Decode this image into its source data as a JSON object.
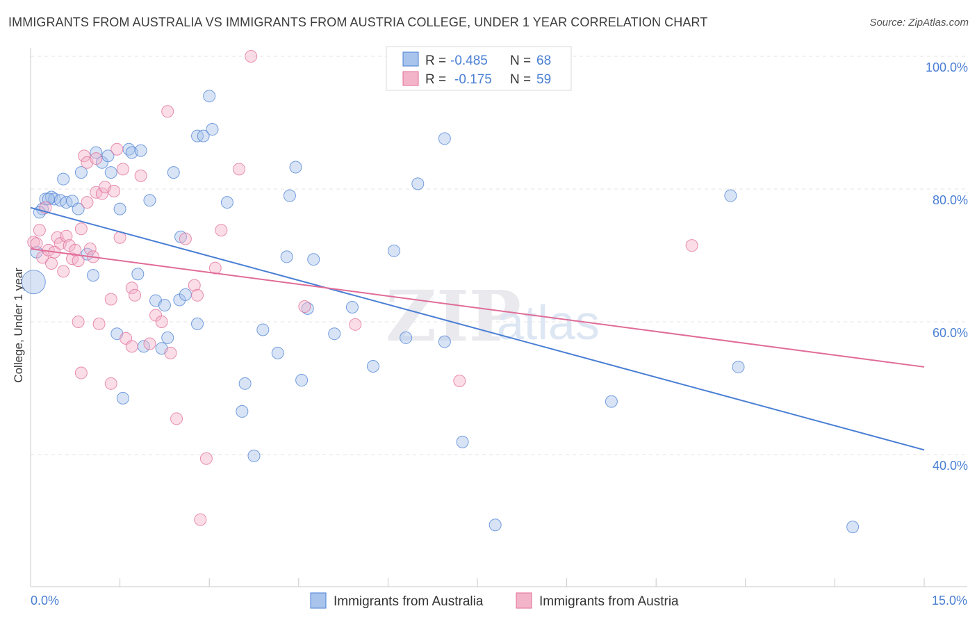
{
  "title": "IMMIGRANTS FROM AUSTRALIA VS IMMIGRANTS FROM AUSTRIA COLLEGE, UNDER 1 YEAR CORRELATION CHART",
  "source": "Source: ZipAtlas.com",
  "colors": {
    "blue": "#4a7fd4",
    "blue_fill": "#a9c4ec",
    "pink": "#e06c97",
    "pink_fill": "#f3b4c9"
  },
  "legend": {
    "r_label": "R =",
    "n_label": "N =",
    "rows": [
      {
        "r": "-0.485",
        "n": "68"
      },
      {
        "r": "-0.175",
        "n": "59"
      }
    ]
  },
  "watermark": {
    "zip": "ZIP",
    "atlas": "atlas"
  },
  "chart_data": {
    "type": "scatter",
    "title": "IMMIGRANTS FROM AUSTRALIA VS IMMIGRANTS FROM AUSTRIA COLLEGE, UNDER 1 YEAR CORRELATION CHART",
    "xlabel": "",
    "ylabel": "College, Under 1 year",
    "xlim": [
      0,
      15
    ],
    "ylim": [
      20,
      102
    ],
    "x_ticks": [
      "0.0%",
      "15.0%"
    ],
    "y_ticks": [
      {
        "value": 100,
        "label": "100.0%"
      },
      {
        "value": 80,
        "label": "80.0%"
      },
      {
        "value": 60,
        "label": "60.0%"
      },
      {
        "value": 40,
        "label": "40.0%"
      }
    ],
    "series": [
      {
        "name": "Immigrants from Australia",
        "color": "#4a7fd4",
        "trend": {
          "x": [
            0,
            15
          ],
          "y": [
            77.2,
            40.7
          ]
        },
        "points": [
          [
            0.05,
            66,
            3
          ],
          [
            0.1,
            70.5,
            1
          ],
          [
            0.2,
            77,
            1
          ],
          [
            0.25,
            78.5,
            1
          ],
          [
            0.35,
            78.8,
            1
          ],
          [
            0.4,
            78.5,
            1
          ],
          [
            0.5,
            78.3,
            1
          ],
          [
            0.55,
            81.5,
            1
          ],
          [
            0.6,
            78,
            1
          ],
          [
            0.7,
            78.2,
            1
          ],
          [
            0.8,
            77,
            1
          ],
          [
            0.85,
            82.5,
            1
          ],
          [
            0.95,
            70.2,
            1
          ],
          [
            1.05,
            67,
            1
          ],
          [
            1.1,
            85.5,
            1
          ],
          [
            1.2,
            84,
            1
          ],
          [
            1.3,
            85,
            1
          ],
          [
            1.35,
            82.5,
            1
          ],
          [
            1.45,
            58.2,
            1
          ],
          [
            1.5,
            77,
            1
          ],
          [
            1.55,
            48.5,
            1
          ],
          [
            1.65,
            86,
            1
          ],
          [
            1.7,
            85.5,
            1
          ],
          [
            1.85,
            85.8,
            1
          ],
          [
            1.8,
            67.2,
            1
          ],
          [
            1.9,
            56.3,
            1
          ],
          [
            2.0,
            78.3,
            1
          ],
          [
            2.1,
            63.2,
            1
          ],
          [
            2.2,
            56,
            1
          ],
          [
            2.25,
            62.5,
            1
          ],
          [
            2.3,
            57.6,
            1
          ],
          [
            2.4,
            82.5,
            1
          ],
          [
            2.5,
            63.3,
            1
          ],
          [
            2.52,
            72.8,
            1
          ],
          [
            2.6,
            64.1,
            1
          ],
          [
            2.8,
            59.7,
            1
          ],
          [
            2.8,
            88,
            1
          ],
          [
            2.9,
            88,
            1
          ],
          [
            3.0,
            94,
            1
          ],
          [
            3.05,
            89,
            1
          ],
          [
            3.3,
            78,
            1
          ],
          [
            3.55,
            46.5,
            1
          ],
          [
            3.6,
            50.7,
            1
          ],
          [
            3.75,
            39.8,
            1
          ],
          [
            3.9,
            58.8,
            1
          ],
          [
            4.15,
            55.3,
            1
          ],
          [
            4.3,
            69.8,
            1
          ],
          [
            4.35,
            79,
            1
          ],
          [
            4.45,
            83.3,
            1
          ],
          [
            4.55,
            51.2,
            1
          ],
          [
            4.65,
            62,
            1
          ],
          [
            4.75,
            69.4,
            1
          ],
          [
            5.1,
            58.2,
            1
          ],
          [
            5.4,
            62.2,
            1
          ],
          [
            5.75,
            53.3,
            1
          ],
          [
            6.1,
            70.7,
            1
          ],
          [
            6.3,
            57.6,
            1
          ],
          [
            6.5,
            80.8,
            1
          ],
          [
            6.95,
            87.6,
            1
          ],
          [
            6.95,
            57,
            1
          ],
          [
            7.25,
            41.9,
            1
          ],
          [
            7.8,
            29.4,
            1
          ],
          [
            9.75,
            48,
            1
          ],
          [
            11.75,
            79,
            1
          ],
          [
            11.88,
            53.2,
            1
          ],
          [
            13.8,
            29.1,
            1
          ],
          [
            0.15,
            76.5,
            1
          ],
          [
            0.3,
            78.5,
            1
          ]
        ]
      },
      {
        "name": "Immigrants from Austria",
        "color": "#e06c97",
        "trend": {
          "x": [
            0,
            15
          ],
          "y": [
            71.0,
            53.2
          ]
        },
        "points": [
          [
            0.05,
            72,
            1
          ],
          [
            0.1,
            71.8,
            1
          ],
          [
            0.15,
            73.8,
            1
          ],
          [
            0.2,
            69.7,
            1
          ],
          [
            0.25,
            77.2,
            1
          ],
          [
            0.3,
            70.8,
            1
          ],
          [
            0.35,
            68.8,
            1
          ],
          [
            0.45,
            72.7,
            1
          ],
          [
            0.5,
            71.8,
            1
          ],
          [
            0.55,
            67.6,
            1
          ],
          [
            0.6,
            72.9,
            1
          ],
          [
            0.65,
            71.5,
            1
          ],
          [
            0.7,
            69.5,
            1
          ],
          [
            0.75,
            70.8,
            1
          ],
          [
            0.8,
            69.2,
            1
          ],
          [
            0.8,
            60,
            1
          ],
          [
            0.85,
            74,
            1
          ],
          [
            0.85,
            52.3,
            1
          ],
          [
            0.9,
            85,
            1
          ],
          [
            0.95,
            84,
            1
          ],
          [
            0.95,
            78,
            1
          ],
          [
            1.0,
            71,
            1
          ],
          [
            1.05,
            69.8,
            1
          ],
          [
            1.1,
            84.6,
            1
          ],
          [
            1.1,
            79.5,
            1
          ],
          [
            1.15,
            59.7,
            1
          ],
          [
            1.2,
            79.3,
            1
          ],
          [
            1.25,
            80.3,
            1
          ],
          [
            1.35,
            63.4,
            1
          ],
          [
            1.35,
            50.7,
            1
          ],
          [
            1.4,
            79.7,
            1
          ],
          [
            1.45,
            86,
            1
          ],
          [
            1.5,
            72.7,
            1
          ],
          [
            1.55,
            83,
            1
          ],
          [
            1.6,
            57.5,
            1
          ],
          [
            1.7,
            65.1,
            1
          ],
          [
            1.7,
            56.3,
            1
          ],
          [
            1.75,
            64,
            1
          ],
          [
            1.85,
            82,
            1
          ],
          [
            2.0,
            56.7,
            1
          ],
          [
            2.1,
            61,
            1
          ],
          [
            2.2,
            60,
            1
          ],
          [
            2.3,
            91.7,
            1
          ],
          [
            2.35,
            55.3,
            1
          ],
          [
            2.45,
            45.4,
            1
          ],
          [
            2.6,
            72.5,
            1
          ],
          [
            2.75,
            65.5,
            1
          ],
          [
            2.8,
            64,
            1
          ],
          [
            2.85,
            30.2,
            1
          ],
          [
            2.95,
            39.4,
            1
          ],
          [
            3.1,
            68.1,
            1
          ],
          [
            3.2,
            73.8,
            1
          ],
          [
            3.5,
            83,
            1
          ],
          [
            3.7,
            100,
            1
          ],
          [
            4.6,
            62.3,
            1
          ],
          [
            5.45,
            59.6,
            1
          ],
          [
            7.2,
            51.1,
            1
          ],
          [
            11.1,
            71.5,
            1
          ],
          [
            0.4,
            70.5,
            1
          ]
        ]
      }
    ]
  },
  "bottom_legend": [
    "Immigrants from Australia",
    "Immigrants from Austria"
  ]
}
